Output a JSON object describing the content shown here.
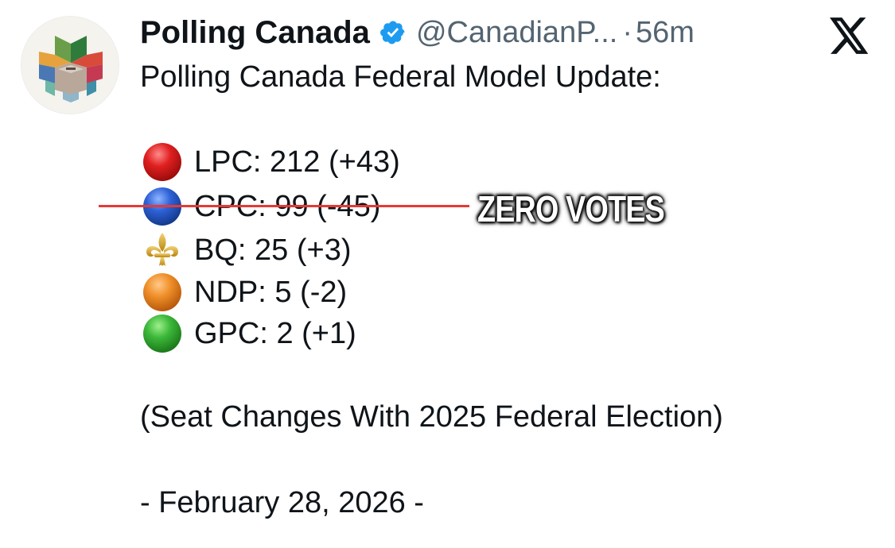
{
  "header": {
    "display_name": "Polling Canada",
    "handle": "@CanadianP...",
    "separator": "·",
    "timestamp": "56m"
  },
  "icons": {
    "avatar": "polling-canada-logo",
    "verified": "verified-badge-icon",
    "brand": "x-logo-icon"
  },
  "colors": {
    "verified_blue": "#1d9bf0",
    "strike_red": "#e53935",
    "text": "#0f1419",
    "secondary_text": "#536471"
  },
  "tweet": {
    "headline": "Polling Canada Federal Model Update:",
    "parties": [
      {
        "icon": "red-circle-icon",
        "text": "LPC: 212 (+43)"
      },
      {
        "icon": "blue-circle-icon",
        "text": "CPC: 99 (-45)"
      },
      {
        "icon": "fleur-de-lis-icon",
        "text": "BQ: 25 (+3)"
      },
      {
        "icon": "orange-circle-icon",
        "text": "NDP: 5 (-2)"
      },
      {
        "icon": "green-circle-icon",
        "text": "GPC: 2 (+1)"
      }
    ],
    "note": "(Seat Changes With 2025 Federal Election)",
    "date_line": "- February 28, 2026 -"
  },
  "overlay": {
    "caption": "ZERO VOTES"
  }
}
